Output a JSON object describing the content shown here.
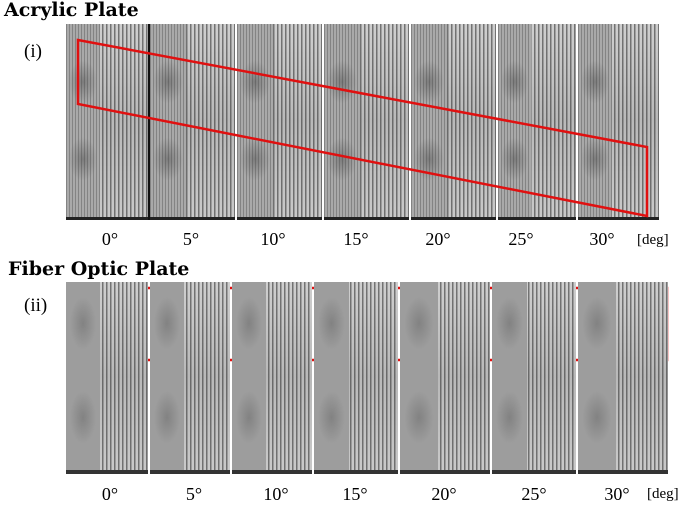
{
  "panels": [
    {
      "title": "Acrylic Plate",
      "tag": "(i)",
      "angles": [
        "0°",
        "5°",
        "10°",
        "15°",
        "20°",
        "25°",
        "30°"
      ],
      "unit": "[deg]"
    },
    {
      "title": "Fiber Optic Plate",
      "tag": "(ii)",
      "angles": [
        "0°",
        "5°",
        "10°",
        "15°",
        "20°",
        "25°",
        "30°"
      ],
      "unit": "[deg]"
    }
  ],
  "colors": {
    "highlight": "#e01010",
    "background": "#ffffff"
  }
}
